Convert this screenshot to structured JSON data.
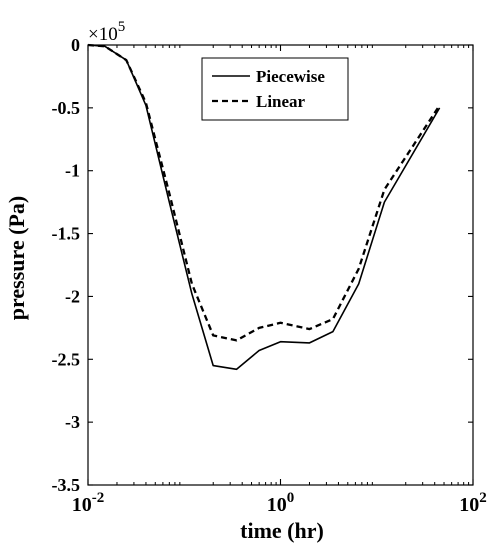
{
  "chart_data": {
    "type": "line",
    "xlabel": "time (hr)",
    "ylabel": "pressure (Pa)",
    "x_scale": "log",
    "xlim": [
      0.01,
      100
    ],
    "ylim": [
      -350000,
      0
    ],
    "y_multiplier_label": "×10",
    "y_multiplier_exp": "5",
    "x_ticks": [
      {
        "value": 0.01,
        "base": "10",
        "exp": "-2"
      },
      {
        "value": 1,
        "base": "10",
        "exp": "0"
      },
      {
        "value": 100,
        "base": "10",
        "exp": "2"
      }
    ],
    "y_ticks": [
      {
        "value": 0,
        "label": "0"
      },
      {
        "value": -50000,
        "label": "-0.5"
      },
      {
        "value": -100000,
        "label": "-1"
      },
      {
        "value": -150000,
        "label": "-1.5"
      },
      {
        "value": -200000,
        "label": "-2"
      },
      {
        "value": -250000,
        "label": "-2.5"
      },
      {
        "value": -300000,
        "label": "-3"
      },
      {
        "value": -350000,
        "label": "-3.5"
      }
    ],
    "grid": false,
    "legend_position": "top-center",
    "series": [
      {
        "name": "Piecewise",
        "style": "solid",
        "color": "#000000",
        "x": [
          0.01,
          0.015,
          0.025,
          0.04,
          0.07,
          0.12,
          0.2,
          0.35,
          0.6,
          1.0,
          2.0,
          3.5,
          6.5,
          12,
          45
        ],
        "y": [
          0,
          -1000,
          -12000,
          -48000,
          -125000,
          -198000,
          -255000,
          -258000,
          -243000,
          -236000,
          -237000,
          -228000,
          -190000,
          -125000,
          -50000
        ]
      },
      {
        "name": "Linear",
        "style": "dashed",
        "color": "#000000",
        "x": [
          0.01,
          0.015,
          0.025,
          0.04,
          0.07,
          0.12,
          0.2,
          0.35,
          0.6,
          1.0,
          2.0,
          3.5,
          6.5,
          12,
          45
        ],
        "y": [
          0,
          -1000,
          -12000,
          -46000,
          -118000,
          -190000,
          -231000,
          -235000,
          -225000,
          -221000,
          -226000,
          -218000,
          -178000,
          -115000,
          -48000
        ]
      }
    ]
  }
}
